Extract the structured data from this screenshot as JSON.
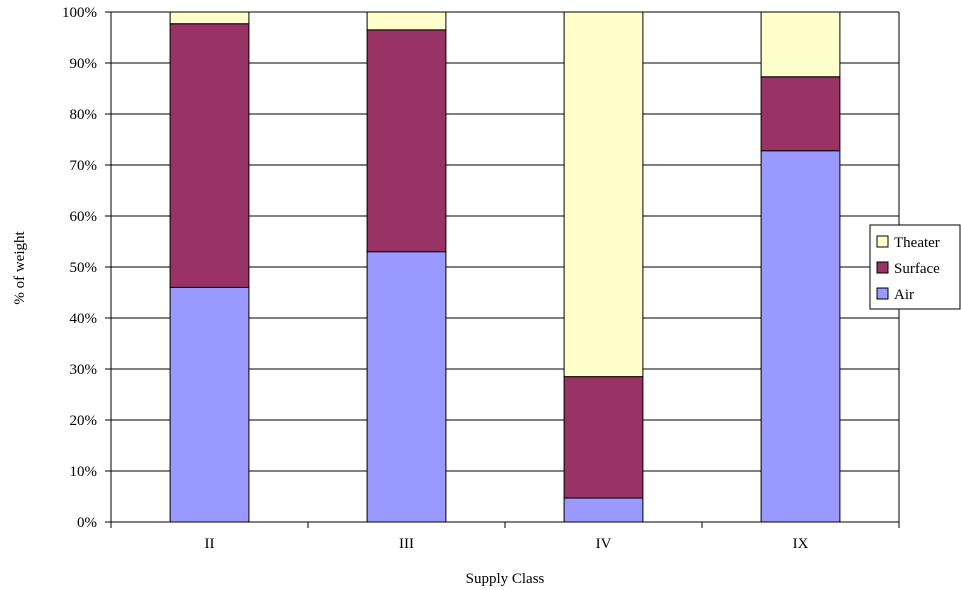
{
  "chart_data": {
    "type": "bar",
    "stacked": true,
    "percent_stacked": true,
    "categories": [
      "II",
      "III",
      "IV",
      "IX"
    ],
    "series": [
      {
        "name": "Air",
        "color": "#9999ff",
        "values": [
          46,
          53,
          4.7,
          72.8
        ]
      },
      {
        "name": "Surface",
        "color": "#993366",
        "values": [
          51.7,
          43.5,
          23.8,
          14.5
        ]
      },
      {
        "name": "Theater",
        "color": "#ffffcc",
        "values": [
          2.3,
          3.5,
          71.5,
          12.7
        ]
      }
    ],
    "xlabel": "Supply Class",
    "ylabel": "% of weight",
    "ylim": [
      0,
      100
    ],
    "y_ticks": [
      "0%",
      "10%",
      "20%",
      "30%",
      "40%",
      "50%",
      "60%",
      "70%",
      "80%",
      "90%",
      "100%"
    ],
    "grid": "horizontal",
    "legend": {
      "placement": "right",
      "order": [
        "Theater",
        "Surface",
        "Air"
      ]
    }
  }
}
